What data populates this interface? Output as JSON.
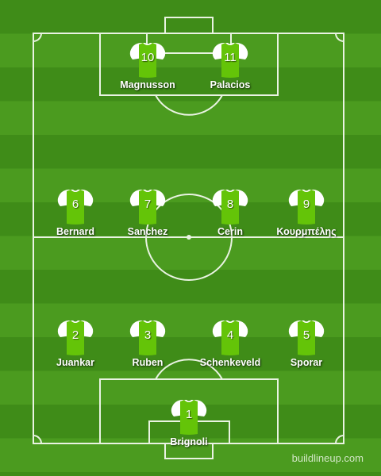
{
  "brand": "buildlineup.com",
  "kit": {
    "body_color": "#64c408",
    "sleeve_color": "#ffffff",
    "collar_color": "#ffffff"
  },
  "players": [
    {
      "number": "10",
      "name": "Magnusson"
    },
    {
      "number": "11",
      "name": "Palacios"
    },
    {
      "number": "6",
      "name": "Bernard"
    },
    {
      "number": "7",
      "name": "Sanchez"
    },
    {
      "number": "8",
      "name": "Cerin"
    },
    {
      "number": "9",
      "name": "Κουρμπέλης"
    },
    {
      "number": "2",
      "name": "Juankar"
    },
    {
      "number": "3",
      "name": "Ruben"
    },
    {
      "number": "4",
      "name": "Schenkeveld"
    },
    {
      "number": "5",
      "name": "Sporar"
    },
    {
      "number": "1",
      "name": "Brignoli"
    }
  ]
}
